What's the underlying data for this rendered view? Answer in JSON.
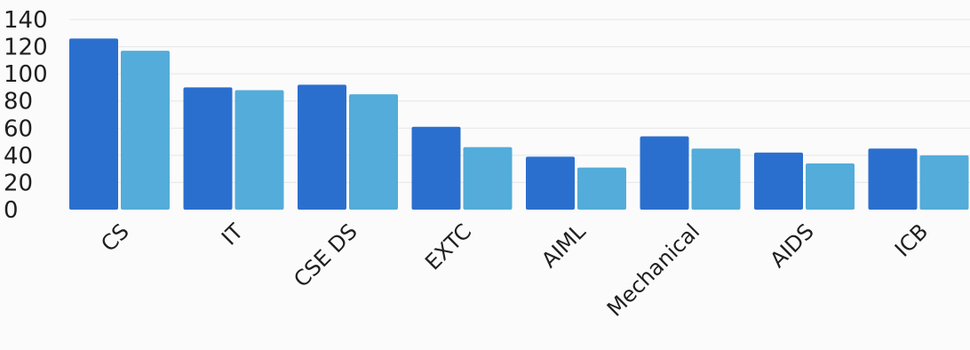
{
  "chart_data": {
    "type": "bar",
    "title": "",
    "xlabel": "",
    "ylabel": "",
    "categories": [
      "CS",
      "IT",
      "CSE DS",
      "EXTC",
      "AIML",
      "Mechanical",
      "AIDS",
      "ICB"
    ],
    "series": [
      {
        "color": "#2b6fce",
        "values": [
          126,
          90,
          92,
          61,
          39,
          54,
          42,
          45
        ]
      },
      {
        "color": "#53acd9",
        "values": [
          117,
          88,
          85,
          46,
          31,
          45,
          34,
          40
        ]
      }
    ],
    "ylim": [
      0,
      140
    ],
    "yticks": [
      0,
      20,
      40,
      60,
      80,
      100,
      120,
      140
    ],
    "grid": true,
    "legend": "none"
  }
}
